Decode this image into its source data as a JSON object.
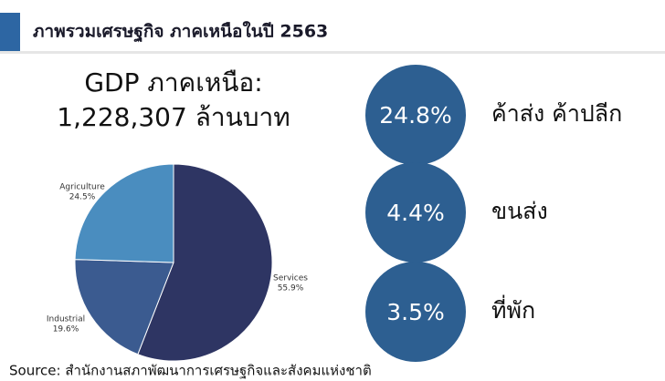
{
  "header": {
    "title": "ภาพรวมเศรษฐกิจ ภาคเหนือในปี 2563"
  },
  "gdp": {
    "line1": "GDP ภาคเหนือ:",
    "line2": "1,228,307 ล้านบาท"
  },
  "chart_data": {
    "type": "pie",
    "categories": [
      "Services",
      "Industrial",
      "Agriculture"
    ],
    "values": [
      55.9,
      19.6,
      24.5
    ],
    "value_labels": [
      "55.9%",
      "19.6%",
      "24.5%"
    ],
    "colors": [
      "#2e3563",
      "#3b5b90",
      "#4a8dbf"
    ]
  },
  "highlights": [
    {
      "value": "24.8%",
      "label": "ค้าส่ง ค้าปลีก"
    },
    {
      "value": "4.4%",
      "label": "ขนส่ง"
    },
    {
      "value": "3.5%",
      "label": "ที่พัก"
    }
  ],
  "source": "Source: สำนักงานสภาพัฒนาการเศรษฐกิจและสังคมแห่งชาติ"
}
